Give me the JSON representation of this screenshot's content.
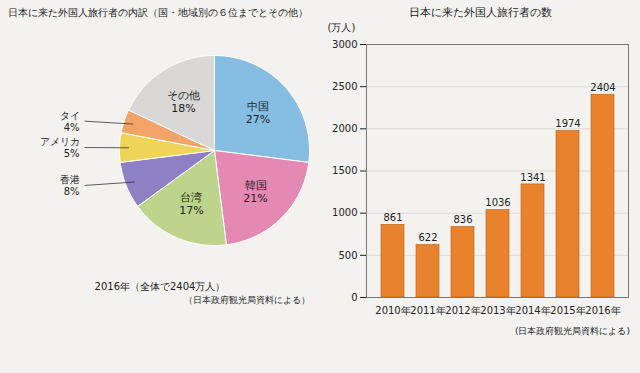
{
  "chart_data": [
    {
      "type": "pie",
      "title": "日本に来た外国人旅行者の内訳（国・地域別の６位までとその他）",
      "caption": "2016年（全体で2404万人）",
      "source": "（日本政府観光局資料による）",
      "categories": [
        "中国",
        "韓国",
        "台湾",
        "香港",
        "アメリカ",
        "タイ",
        "その他"
      ],
      "values": [
        27,
        21,
        17,
        8,
        5,
        4,
        18
      ],
      "value_labels": [
        "27%",
        "21%",
        "17%",
        "8%",
        "5%",
        "4%",
        "18%"
      ],
      "colors": [
        "#86bde3",
        "#e489b3",
        "#bcd48c",
        "#8f7fc4",
        "#f0d458",
        "#f2a468",
        "#d9d8d6"
      ],
      "data_labels": true
    },
    {
      "type": "bar",
      "title": "日本に来た外国人旅行者の数",
      "ylabel": "(万人)",
      "source": "(日本政府観光局資料による)",
      "categories": [
        "2010年",
        "2011年",
        "2012年",
        "2013年",
        "2014年",
        "2015年",
        "2016年"
      ],
      "values": [
        861,
        622,
        836,
        1036,
        1341,
        1974,
        2404
      ],
      "color": "#e8822c",
      "ylim": [
        0,
        3000
      ],
      "yticks": [
        0,
        500,
        1000,
        1500,
        2000,
        2500,
        3000
      ],
      "grid": true,
      "data_labels": true
    }
  ]
}
